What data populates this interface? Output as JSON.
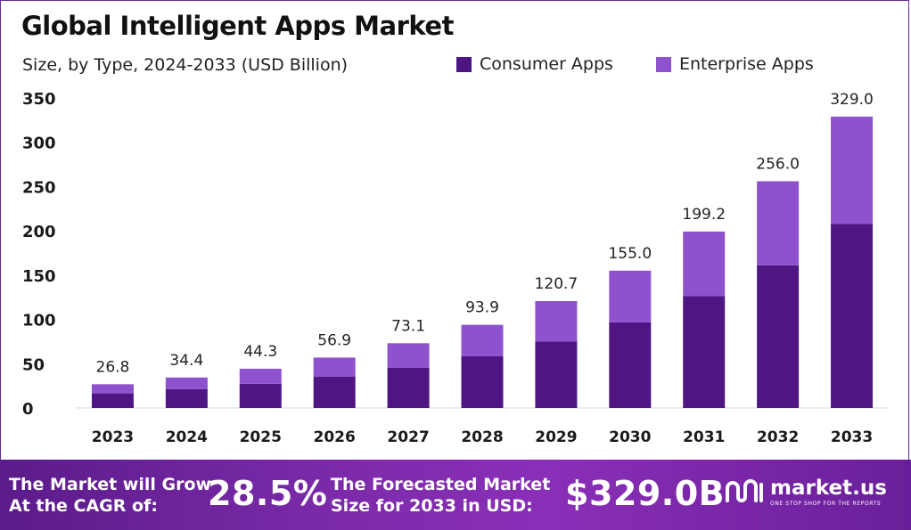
{
  "title": "Global Intelligent Apps Market",
  "subtitle": "Size, by Type, 2024-2033 (USD Billion)",
  "legend": {
    "consumer": "Consumer Apps",
    "enterprise": "Enterprise Apps"
  },
  "colors": {
    "consumer": "#4f1683",
    "enterprise": "#8f52cf",
    "banner": "#7a2aa8"
  },
  "chart_data": {
    "type": "bar",
    "stacked": true,
    "title": "Global Intelligent Apps Market",
    "subtitle": "Size, by Type, 2024-2033 (USD Billion)",
    "categories": [
      "2023",
      "2024",
      "2025",
      "2026",
      "2027",
      "2028",
      "2029",
      "2030",
      "2031",
      "2032",
      "2033"
    ],
    "series": [
      {
        "name": "Consumer Apps",
        "values": [
          16.5,
          21.2,
          27.3,
          35.2,
          45.3,
          58.4,
          75.0,
          96.8,
          126.5,
          161.0,
          208.0
        ]
      },
      {
        "name": "Enterprise Apps",
        "values": [
          10.3,
          13.2,
          17.0,
          21.7,
          27.8,
          35.5,
          45.7,
          58.2,
          72.7,
          95.0,
          121.0
        ]
      }
    ],
    "totals": [
      "26.8",
      "34.4",
      "44.3",
      "56.9",
      "73.1",
      "93.9",
      "120.7",
      "155.0",
      "199.2",
      "256.0",
      "329.0"
    ],
    "yticks": [
      0,
      50,
      100,
      150,
      200,
      250,
      300,
      350
    ],
    "ylim": [
      0,
      350
    ],
    "xlabel": "",
    "ylabel": "",
    "grid": false,
    "legend_position": "top-right"
  },
  "banner": {
    "grow_line1": "The Market will Grow",
    "grow_line2": "At the CAGR of:",
    "cagr": "28.5%",
    "forecast_line1": "The Forecasted Market",
    "forecast_line2": "Size for 2033 in USD:",
    "forecast_value": "$329.0B",
    "brand_name": "market.us",
    "brand_tagline": "ONE STOP SHOP FOR THE REPORTS"
  }
}
